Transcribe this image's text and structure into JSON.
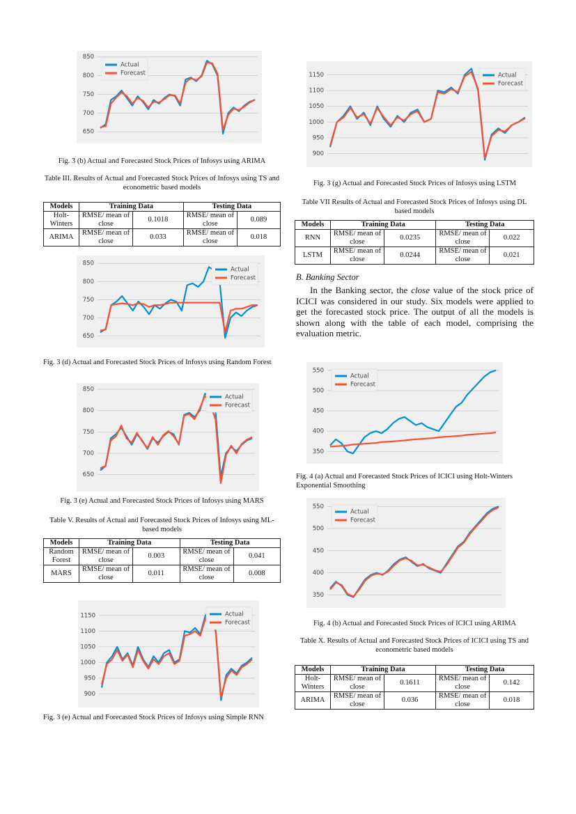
{
  "chart_data": [
    {
      "type": "line",
      "caption": "Fig. 3 (b) Actual and Forecasted Stock Prices of Infosys using ARIMA",
      "ylim": [
        630,
        855
      ],
      "yticks": [
        650,
        700,
        750,
        800,
        850
      ],
      "grid": true,
      "legend": "upper left",
      "series": [
        {
          "name": "Actual",
          "color": "#008fd5",
          "values": [
            660,
            670,
            735,
            745,
            760,
            740,
            720,
            745,
            730,
            710,
            735,
            725,
            740,
            750,
            745,
            720,
            790,
            795,
            785,
            800,
            840,
            830,
            800,
            645,
            700,
            715,
            705,
            720,
            730,
            735
          ]
        },
        {
          "name": "Forecast",
          "color": "#fc4f30",
          "values": [
            662,
            665,
            725,
            742,
            755,
            745,
            725,
            740,
            733,
            715,
            730,
            728,
            737,
            748,
            747,
            725,
            782,
            793,
            788,
            798,
            835,
            833,
            805,
            655,
            695,
            712,
            708,
            717,
            728,
            736
          ]
        }
      ]
    },
    {
      "type": "line",
      "caption": "Fig. 3 (d) Actual and Forecasted Stock Prices of Infosys using Random Forest",
      "ylim": [
        630,
        860
      ],
      "yticks": [
        650,
        700,
        750,
        800,
        850
      ],
      "grid": true,
      "legend": "upper right",
      "series": [
        {
          "name": "Actual",
          "color": "#008fd5",
          "values": [
            660,
            670,
            735,
            745,
            760,
            740,
            720,
            745,
            730,
            710,
            735,
            725,
            740,
            750,
            745,
            720,
            790,
            795,
            785,
            800,
            840,
            830,
            800,
            645,
            700,
            715,
            705,
            720,
            730,
            735
          ]
        },
        {
          "name": "Forecast",
          "color": "#fc4f30",
          "values": [
            665,
            668,
            735,
            738,
            740,
            738,
            735,
            740,
            738,
            730,
            735,
            735,
            738,
            742,
            742,
            742,
            742,
            742,
            742,
            742,
            742,
            742,
            742,
            660,
            720,
            725,
            725,
            730,
            735,
            735
          ]
        }
      ]
    },
    {
      "type": "line",
      "caption": "Fig. 3 (e) Actual and Forecasted Stock Prices of Infosys using MARS",
      "ylim": [
        620,
        855
      ],
      "yticks": [
        650,
        700,
        750,
        800,
        850
      ],
      "grid": true,
      "legend": "upper right",
      "series": [
        {
          "name": "Actual",
          "color": "#008fd5",
          "values": [
            660,
            670,
            735,
            745,
            760,
            740,
            720,
            745,
            730,
            710,
            735,
            725,
            740,
            750,
            745,
            720,
            790,
            795,
            785,
            800,
            840,
            830,
            800,
            645,
            700,
            715,
            705,
            720,
            730,
            735
          ]
        },
        {
          "name": "Forecast",
          "color": "#fc4f30",
          "values": [
            665,
            670,
            730,
            740,
            765,
            735,
            725,
            748,
            728,
            712,
            738,
            720,
            742,
            752,
            740,
            722,
            788,
            792,
            780,
            805,
            835,
            815,
            780,
            630,
            695,
            718,
            700,
            722,
            732,
            738
          ]
        }
      ]
    },
    {
      "type": "line",
      "caption": "Fig. 3 (e) Actual and Forecasted Stock Prices of Infosys using Simple RNN",
      "ylim": [
        870,
        1185
      ],
      "yticks": [
        900,
        950,
        1000,
        1050,
        1100,
        1150
      ],
      "grid": true,
      "legend": "upper right",
      "series": [
        {
          "name": "Actual",
          "color": "#008fd5",
          "values": [
            920,
            1000,
            1020,
            1050,
            1010,
            1030,
            990,
            1050,
            1010,
            985,
            1020,
            1000,
            1030,
            1040,
            1000,
            1010,
            1100,
            1095,
            1110,
            1090,
            1150,
            1170,
            1100,
            880,
            960,
            980,
            965,
            990,
            1000,
            1015
          ]
        },
        {
          "name": "Forecast",
          "color": "#fc4f30",
          "values": [
            930,
            995,
            1010,
            1040,
            1005,
            1025,
            985,
            1040,
            1005,
            980,
            1010,
            995,
            1020,
            1030,
            995,
            1005,
            1085,
            1090,
            1100,
            1085,
            1140,
            1160,
            1095,
            890,
            950,
            975,
            960,
            985,
            995,
            1010
          ]
        }
      ]
    },
    {
      "type": "line",
      "caption": "Fig. 3 (g) Actual and Forecasted Stock Prices of Infosys using LSTM",
      "ylim": [
        870,
        1180
      ],
      "yticks": [
        900,
        950,
        1000,
        1050,
        1100,
        1150
      ],
      "grid": true,
      "legend": "upper right",
      "series": [
        {
          "name": "Actual",
          "color": "#008fd5",
          "values": [
            920,
            1000,
            1020,
            1050,
            1010,
            1030,
            990,
            1050,
            1010,
            985,
            1020,
            1000,
            1030,
            1040,
            1000,
            1010,
            1100,
            1095,
            1110,
            1090,
            1150,
            1170,
            1100,
            880,
            960,
            980,
            965,
            990,
            1000,
            1015
          ]
        },
        {
          "name": "Forecast",
          "color": "#fc4f30",
          "values": [
            925,
            1000,
            1015,
            1045,
            1015,
            1025,
            995,
            1045,
            1015,
            990,
            1015,
            1005,
            1025,
            1035,
            1000,
            1010,
            1095,
            1090,
            1105,
            1095,
            1145,
            1160,
            1105,
            885,
            955,
            975,
            970,
            990,
            1000,
            1012
          ]
        }
      ]
    },
    {
      "type": "line",
      "caption": "Fig. 4 (a) Actual and Forecasted Stock Prices of ICICI using Holt-Winters Exponential Smoothing",
      "ylim": [
        330,
        560
      ],
      "yticks": [
        350,
        400,
        450,
        500,
        550
      ],
      "grid": true,
      "legend": "upper left",
      "series": [
        {
          "name": "Actual",
          "color": "#008fd5",
          "values": [
            365,
            380,
            370,
            350,
            345,
            365,
            385,
            395,
            400,
            395,
            405,
            420,
            430,
            435,
            425,
            415,
            420,
            410,
            405,
            400,
            420,
            440,
            460,
            470,
            490,
            505,
            520,
            535,
            545,
            550
          ]
        },
        {
          "name": "Forecast",
          "color": "#fc4f30",
          "values": [
            362,
            363,
            364,
            365,
            367,
            368,
            369,
            370,
            371,
            373,
            374,
            375,
            376,
            377,
            379,
            380,
            381,
            382,
            383,
            385,
            386,
            387,
            388,
            389,
            391,
            392,
            393,
            394,
            395,
            397
          ]
        }
      ]
    },
    {
      "type": "line",
      "caption": "Fig. 4 (b) Actual and Forecasted Stock Prices of ICICI using ARIMA",
      "ylim": [
        330,
        560
      ],
      "yticks": [
        350,
        400,
        450,
        500,
        550
      ],
      "grid": true,
      "legend": "upper left",
      "series": [
        {
          "name": "Actual",
          "color": "#008fd5",
          "values": [
            365,
            380,
            370,
            350,
            345,
            365,
            385,
            395,
            400,
            395,
            405,
            420,
            430,
            435,
            425,
            415,
            420,
            410,
            405,
            400,
            420,
            440,
            460,
            470,
            490,
            505,
            520,
            535,
            545,
            550
          ]
        },
        {
          "name": "Forecast",
          "color": "#fc4f30",
          "values": [
            362,
            378,
            372,
            352,
            346,
            362,
            382,
            393,
            398,
            396,
            403,
            417,
            428,
            433,
            427,
            417,
            418,
            412,
            406,
            402,
            417,
            437,
            457,
            468,
            487,
            503,
            517,
            532,
            542,
            548
          ]
        }
      ]
    }
  ],
  "tables": [
    {
      "caption": "Table III.  Results of Actual and Forecasted Stock Prices of Infosys using TS and econometric based models",
      "columns": [
        "Models",
        "Training Data",
        "Testing Data"
      ],
      "rows": [
        [
          "Holt-Winters",
          "RMSE/ mean of close",
          "0.1018",
          "RMSE/ mean of close",
          "0.089"
        ],
        [
          "ARIMA",
          "RMSE/ mean of close",
          "0.033",
          "RMSE/ mean of close",
          "0.018"
        ]
      ]
    },
    {
      "caption": "Table V. Results of Actual and Forecasted Stock Prices of Infosys using ML-based models",
      "columns": [
        "Models",
        "Training Data",
        "Testing Data"
      ],
      "rows": [
        [
          "Random Forest",
          "RMSE/ mean of close",
          "0.003",
          "RMSE/ mean of close",
          "0.041"
        ],
        [
          "MARS",
          "RMSE/ mean of close",
          "0.011",
          "RMSE/ mean of close",
          "0.008"
        ]
      ]
    },
    {
      "caption": "Table VII Results of Actual and Forecasted Stock Prices of Infosys using DL based models",
      "columns": [
        "Models",
        "Training Data",
        "Testing Data"
      ],
      "rows": [
        [
          "RNN",
          "RMSE/ mean of close",
          "0.0235",
          "RMSE/ mean of close",
          "0.022"
        ],
        [
          "LSTM",
          "RMSE/ mean of close",
          "0.0244",
          "RMSE/ mean of close",
          "0.021"
        ]
      ]
    },
    {
      "caption": "Table X. Results of Actual and Forecasted Stock Prices of ICICI using TS and econometric based models",
      "columns": [
        "Models",
        "Training Data",
        "Testing Data"
      ],
      "rows": [
        [
          "Holt-Winters",
          "RMSE/ mean of close",
          "0.1611",
          "RMSE/ mean of close",
          "0.142"
        ],
        [
          "ARIMA",
          "RMSE/ mean of close",
          "0.036",
          "RMSE/ mean of close",
          "0.018"
        ]
      ]
    }
  ],
  "section": {
    "heading": "B.  Banking Sector",
    "paragraph": [
      "In the Banking sector, the ",
      "close",
      " value of the stock price of ICICI was considered in our study. Six models were applied to get the forecasted stock price. The output of all the models is shown along with the table of each model, comprising the evaluation metric."
    ]
  }
}
